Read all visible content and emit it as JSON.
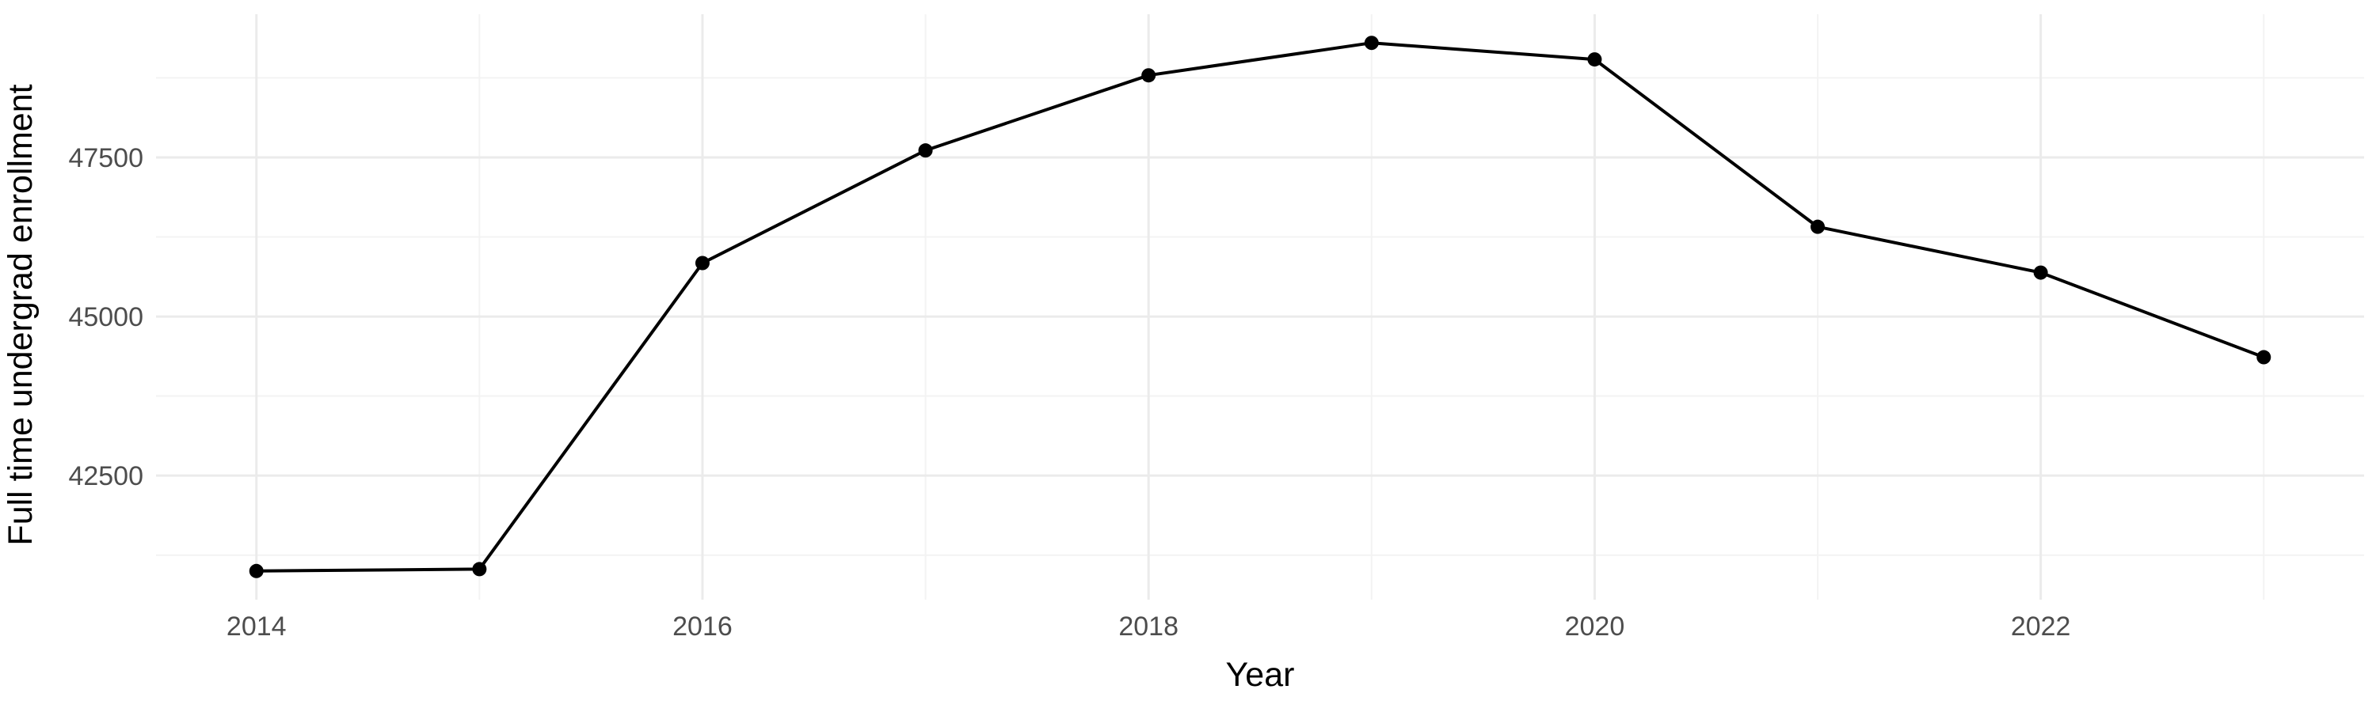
{
  "chart_data": {
    "type": "line",
    "title": "",
    "xlabel": "Year",
    "ylabel": "Full time undergrad enrollment",
    "x": [
      2014,
      2015,
      2016,
      2017,
      2018,
      2019,
      2020,
      2021,
      2022,
      2023
    ],
    "series": [
      {
        "values": [
          41000,
          41030,
          45840,
          47610,
          48790,
          49300,
          49040,
          46410,
          45690,
          44360
        ],
        "color": "#000000"
      }
    ],
    "xlim": [
      2013.55,
      2023.45
    ],
    "ylim": [
      40550,
      49750
    ],
    "x_ticks": [
      2014,
      2016,
      2018,
      2020,
      2022
    ],
    "x_tick_labels": [
      "2014",
      "2016",
      "2018",
      "2020",
      "2022"
    ],
    "y_ticks": [
      42500,
      45000,
      47500
    ],
    "y_tick_labels": [
      "42500",
      "45000",
      "47500"
    ],
    "grid": true,
    "legend": "none"
  }
}
